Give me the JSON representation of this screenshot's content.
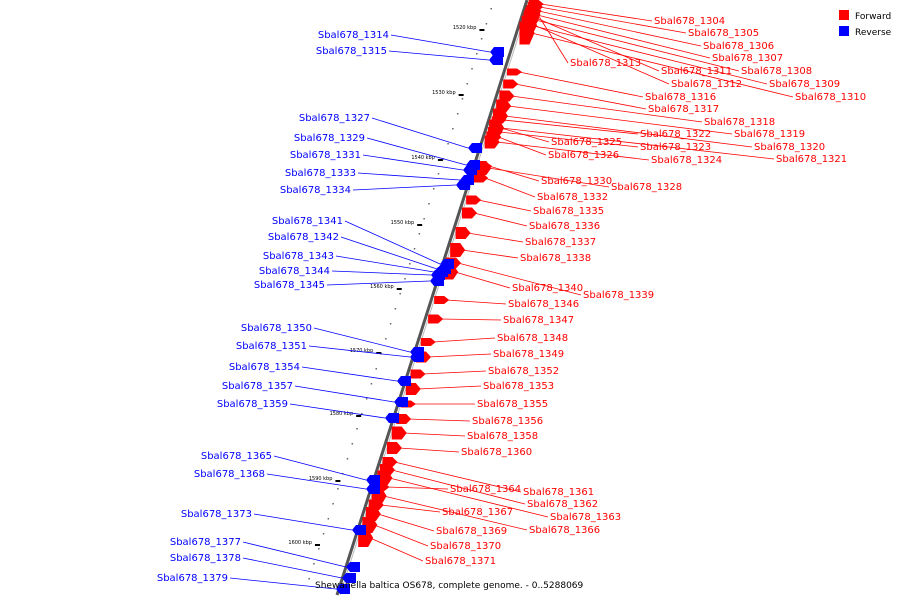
{
  "caption": "Shewanella baltica OS678, complete genome. - 0..5288069",
  "legend": [
    {
      "label": "Forward",
      "color": "#ff0000"
    },
    {
      "label": "Reverse",
      "color": "#0000ff"
    }
  ],
  "colors": {
    "forward": "#ff0000",
    "reverse": "#0000ff",
    "backbone": "#888888"
  },
  "kbp_ticks": [
    "1520 kbp",
    "1530 kbp",
    "1540 kbp",
    "1550 kbp",
    "1560 kbp",
    "1570 kbp",
    "1580 kbp",
    "1590 kbp",
    "1600 kbp"
  ],
  "forward_genes": [
    "Sbal678_1304",
    "Sbal678_1305",
    "Sbal678_1306",
    "Sbal678_1307",
    "Sbal678_1308",
    "Sbal678_1309",
    "Sbal678_1310",
    "Sbal678_1311",
    "Sbal678_1312",
    "Sbal678_1313",
    "Sbal678_1316",
    "Sbal678_1317",
    "Sbal678_1318",
    "Sbal678_1319",
    "Sbal678_1320",
    "Sbal678_1321",
    "Sbal678_1322",
    "Sbal678_1323",
    "Sbal678_1324",
    "Sbal678_1325",
    "Sbal678_1326",
    "Sbal678_1328",
    "Sbal678_1330",
    "Sbal678_1332",
    "Sbal678_1335",
    "Sbal678_1336",
    "Sbal678_1337",
    "Sbal678_1338",
    "Sbal678_1339",
    "Sbal678_1340",
    "Sbal678_1346",
    "Sbal678_1347",
    "Sbal678_1348",
    "Sbal678_1349",
    "Sbal678_1352",
    "Sbal678_1353",
    "Sbal678_1355",
    "Sbal678_1356",
    "Sbal678_1358",
    "Sbal678_1360",
    "Sbal678_1361",
    "Sbal678_1362",
    "Sbal678_1363",
    "Sbal678_1364",
    "Sbal678_1366",
    "Sbal678_1367",
    "Sbal678_1369",
    "Sbal678_1370",
    "Sbal678_1371"
  ],
  "reverse_genes": [
    "Sbal678_1314",
    "Sbal678_1315",
    "Sbal678_1327",
    "Sbal678_1329",
    "Sbal678_1331",
    "Sbal678_1333",
    "Sbal678_1334",
    "Sbal678_1341",
    "Sbal678_1342",
    "Sbal678_1343",
    "Sbal678_1344",
    "Sbal678_1345",
    "Sbal678_1350",
    "Sbal678_1351",
    "Sbal678_1354",
    "Sbal678_1357",
    "Sbal678_1359",
    "Sbal678_1365",
    "Sbal678_1368",
    "Sbal678_1373",
    "Sbal678_1377",
    "Sbal678_1378",
    "Sbal678_1379"
  ]
}
